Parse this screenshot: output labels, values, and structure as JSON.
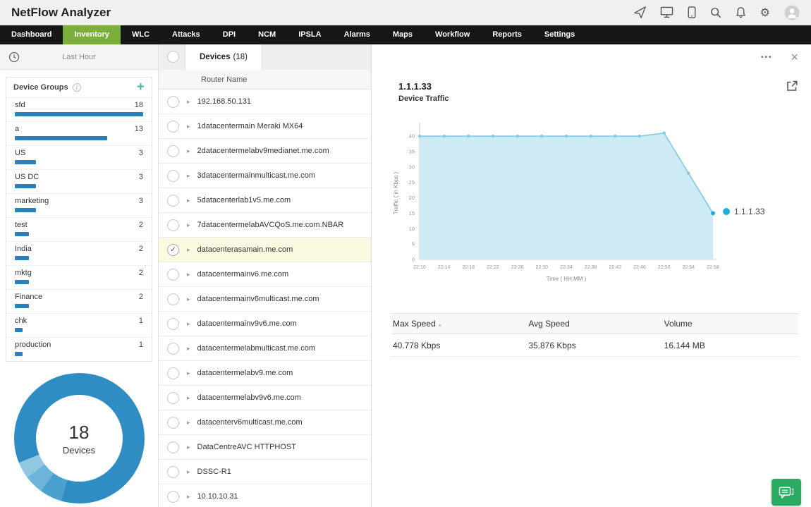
{
  "header": {
    "title": "NetFlow Analyzer",
    "icon_names": [
      "send-icon",
      "screen-icon",
      "mobile-icon",
      "search-icon",
      "bell-icon",
      "gear-icon",
      "user-avatar"
    ]
  },
  "icons": {
    "chevron": "▸",
    "check": "✓",
    "close": "×",
    "more": "•••",
    "plus": "+",
    "sort": "▴",
    "info": "i",
    "gear": "⚙"
  },
  "colors": {
    "accent_green": "#7cae3c",
    "bar_blue": "#2b7fb8",
    "donut_blue": "#2f8dc4",
    "selected_row": "#fbf9e0",
    "chart_line": "#7fcbe3",
    "chart_fill": "#cdeaf5",
    "legend_dot": "#1fb0d6",
    "chat_green": "#2bab62"
  },
  "nav": {
    "tabs": [
      {
        "label": "Dashboard",
        "active": false
      },
      {
        "label": "Inventory",
        "active": true
      },
      {
        "label": "WLC",
        "active": false
      },
      {
        "label": "Attacks",
        "active": false
      },
      {
        "label": "DPI",
        "active": false
      },
      {
        "label": "NCM",
        "active": false
      },
      {
        "label": "IPSLA",
        "active": false
      },
      {
        "label": "Alarms",
        "active": false
      },
      {
        "label": "Maps",
        "active": false
      },
      {
        "label": "Workflow",
        "active": false
      },
      {
        "label": "Reports",
        "active": false
      },
      {
        "label": "Settings",
        "active": false
      }
    ]
  },
  "sidebar": {
    "time_filter": "Last Hour",
    "groups_title": "Device Groups",
    "groups": [
      {
        "name": "sfd",
        "count": 18
      },
      {
        "name": "a",
        "count": 13
      },
      {
        "name": "US",
        "count": 3
      },
      {
        "name": "US DC",
        "count": 3
      },
      {
        "name": "marketing",
        "count": 3
      },
      {
        "name": "test",
        "count": 2
      },
      {
        "name": "India",
        "count": 2
      },
      {
        "name": "mktg",
        "count": 2
      },
      {
        "name": "Finance",
        "count": 2
      },
      {
        "name": "chk",
        "count": 1
      },
      {
        "name": "production",
        "count": 1
      }
    ],
    "donut": {
      "total": "18",
      "label": "Devices",
      "segments": [
        {
          "color": "#2f8dc4",
          "deg": 196
        },
        {
          "color": "#4aa0cf",
          "deg": 20
        },
        {
          "color": "#6db4da",
          "deg": 17
        },
        {
          "color": "#90c8e4",
          "deg": 15
        },
        {
          "color": "#2f8dc4",
          "deg": 112
        }
      ]
    }
  },
  "device_list": {
    "tab_label": "Devices",
    "tab_count": "(18)",
    "column_header": "Router Name",
    "rows": [
      {
        "name": "192.168.50.131",
        "selected": false
      },
      {
        "name": "1datacentermain Meraki MX64",
        "selected": false
      },
      {
        "name": "2datacentermelabv9medianet.me.com",
        "selected": false
      },
      {
        "name": "3datacentermainmulticast.me.com",
        "selected": false
      },
      {
        "name": "5datacenterlab1v5.me.com",
        "selected": false
      },
      {
        "name": "7datacentermelabAVCQoS.me.com.NBAR",
        "selected": false
      },
      {
        "name": "datacenterasamain.me.com",
        "selected": true
      },
      {
        "name": "datacentermainv6.me.com",
        "selected": false
      },
      {
        "name": "datacentermainv6multicast.me.com",
        "selected": false
      },
      {
        "name": "datacentermainv9v6.me.com",
        "selected": false
      },
      {
        "name": "datacentermelabmulticast.me.com",
        "selected": false
      },
      {
        "name": "datacentermelabv9.me.com",
        "selected": false
      },
      {
        "name": "datacentermelabv9v6.me.com",
        "selected": false
      },
      {
        "name": "datacenterv6multicast.me.com",
        "selected": false
      },
      {
        "name": "DataCentreAVC HTTPHOST",
        "selected": false
      },
      {
        "name": "DSSC-R1",
        "selected": false
      },
      {
        "name": "10.10.10.31",
        "selected": false
      }
    ]
  },
  "detail": {
    "device_ip": "1.1.1.33",
    "subtitle": "Device Traffic",
    "table": {
      "headers": [
        "Max Speed",
        "Avg Speed",
        "Volume"
      ],
      "rows": [
        [
          "40.778 Kbps",
          "35.876 Kbps",
          "16.144 MB"
        ]
      ]
    }
  },
  "chart_data": {
    "type": "area",
    "title": "Device Traffic",
    "x": [
      "22:10",
      "22:14",
      "22:18",
      "22:22",
      "22:26",
      "22:30",
      "22:34",
      "22:38",
      "22:42",
      "22:46",
      "22:50",
      "22:54",
      "22:58"
    ],
    "series": [
      {
        "name": "1.1.1.33",
        "values": [
          40,
          40,
          40,
          40,
          40,
          40,
          40,
          40,
          40,
          40,
          41,
          28,
          15
        ]
      }
    ],
    "xlabel": "Time ( HH:MM )",
    "ylabel": "Traffic ( in Kbps )",
    "ylim": [
      0,
      40
    ],
    "yticks": [
      0,
      5,
      10,
      15,
      20,
      25,
      30,
      35,
      40
    ],
    "draw_max": 43,
    "grid": false,
    "legend_position": "right",
    "line_color": "#7fcbe3",
    "fill_color": "#cdeaf5",
    "point_color": "#1fb0d6"
  }
}
